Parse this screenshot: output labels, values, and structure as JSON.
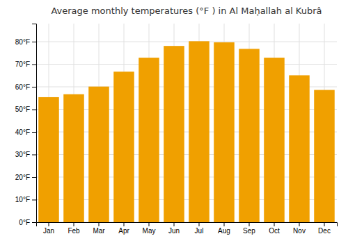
{
  "chart_data": {
    "type": "bar",
    "title": "Average monthly temperatures (°F ) in Al Maḥ̣allah al Kubrâ",
    "categories": [
      "Jan",
      "Feb",
      "Mar",
      "Apr",
      "May",
      "Jun",
      "Jul",
      "Aug",
      "Sep",
      "Oct",
      "Nov",
      "Dec"
    ],
    "values": [
      55.4,
      56.7,
      60.1,
      66.7,
      72.9,
      78.1,
      80.2,
      79.7,
      76.8,
      72.9,
      65.1,
      58.6
    ],
    "color": "#F0A000",
    "ylim": [
      0,
      88
    ],
    "yticks": [
      {
        "value": 0,
        "label": "0°F"
      },
      {
        "value": 10,
        "label": "10°F"
      },
      {
        "value": 20,
        "label": "20°F"
      },
      {
        "value": 30,
        "label": "30°F"
      },
      {
        "value": 40,
        "label": "40°F"
      },
      {
        "value": 50,
        "label": "50°F"
      },
      {
        "value": 60,
        "label": "60°F"
      },
      {
        "value": 70,
        "label": "70°F"
      },
      {
        "value": 80,
        "label": "80°F"
      }
    ],
    "grid": true
  }
}
